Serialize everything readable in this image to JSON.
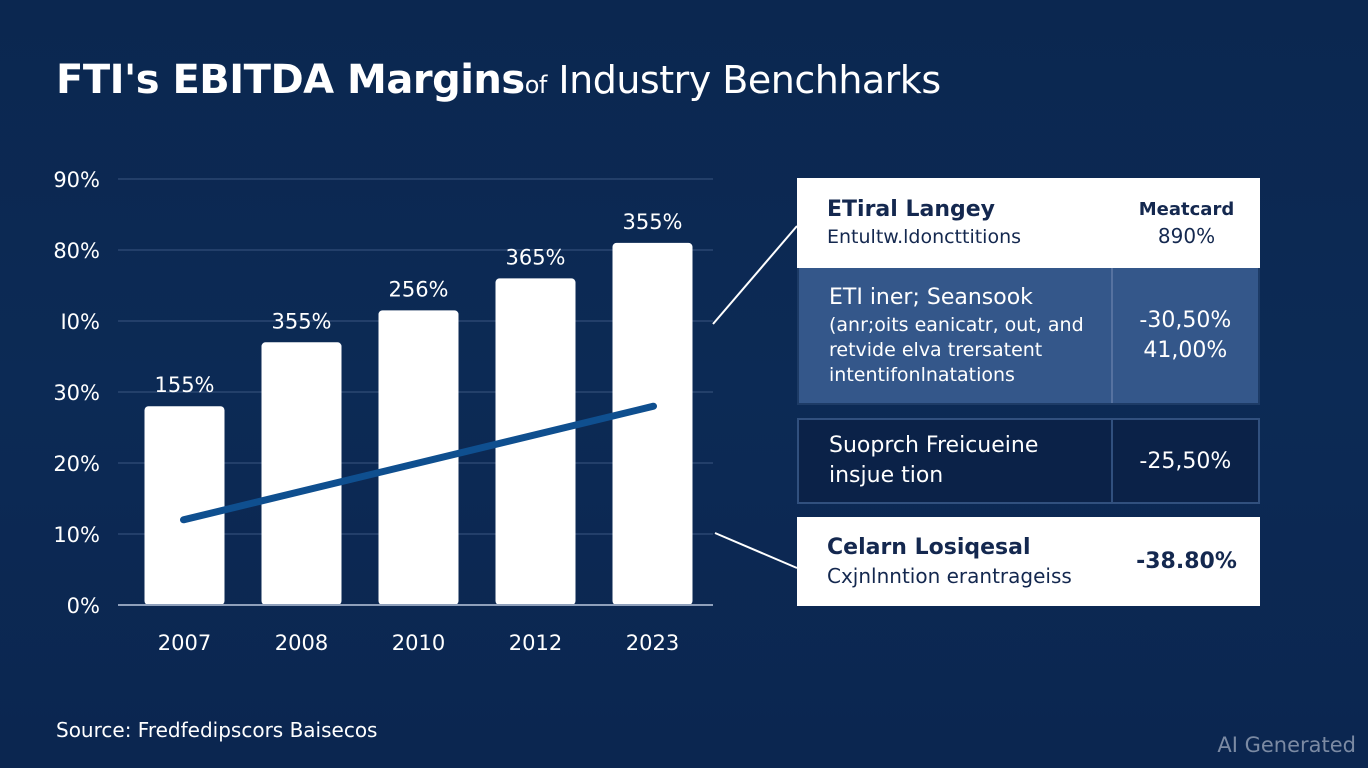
{
  "title": {
    "bold": "FTI's EBITDA Margins",
    "light_small": "of",
    "light": " Industry Benchharks"
  },
  "chart_data": {
    "type": "bar",
    "title": "FTI's EBITDA Margins of Industry Benchharks",
    "xlabel": "",
    "ylabel": "",
    "grid": true,
    "y_tick_labels": [
      "0%",
      "10%",
      "20%",
      "30%",
      "I0%",
      "80%",
      "90%"
    ],
    "y_range_steps": [
      0,
      6
    ],
    "categories": [
      "2007",
      "2008",
      "2010",
      "2012",
      "2023"
    ],
    "series": [
      {
        "name": "EBITDA margin (bars)",
        "kind": "bar",
        "values_in_tick_steps": [
          2.8,
          3.7,
          4.15,
          4.6,
          5.1
        ],
        "data_labels": [
          "155%",
          "355%",
          "256%",
          "365%",
          "355%"
        ]
      },
      {
        "name": "Trend line",
        "kind": "line",
        "start_category": "2007",
        "end_category": "2023",
        "values_in_tick_steps": [
          1.2,
          2.8
        ]
      }
    ],
    "colors": {
      "bar": "#ffffff",
      "line": "#0f4f8f",
      "grid": "#3a5580",
      "axis": "#8fa0bb"
    }
  },
  "table": {
    "rows": [
      {
        "heading": "ETiral Langey",
        "sub": [
          "Entultw.ldoncttitions"
        ],
        "right_heading": "Meatcard",
        "right_values": [
          "890%"
        ]
      },
      {
        "heading": "ETI iner; Seansook",
        "sub": [
          "(anr;oits eanicatr, out, and",
          "retvide elva trersatent",
          "intentifonlnatations"
        ],
        "right_values": [
          "-30,50%",
          "41,00%"
        ]
      },
      {
        "heading": "Suoprch Freicueine",
        "sub": [
          "insjue tion"
        ],
        "right_values": [
          "-25,50%"
        ]
      },
      {
        "heading": "Celarn Losiqesal",
        "sub": [
          "Cxjnlnntion erantrageiss"
        ],
        "right_values": [
          "-38.80%"
        ]
      }
    ]
  },
  "source": "Source: Fredfedipscors Baisecos",
  "watermark": "AI Generated",
  "colors": {
    "background": "#0c2850",
    "panel_mid": "#34578a",
    "panel_dark": "#0b2248",
    "panel_light": "#ffffff",
    "panel_text_dark": "#14284f"
  }
}
